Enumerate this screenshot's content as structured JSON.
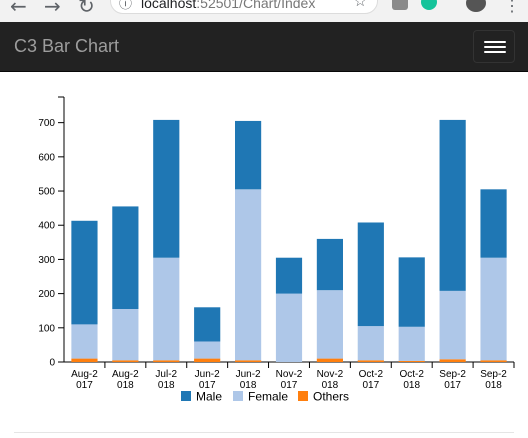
{
  "browser": {
    "url_host": "localhost",
    "url_rest": ":52501/Chart/Index"
  },
  "navbar": {
    "brand": "C3 Bar Chart"
  },
  "chart_data": {
    "type": "bar",
    "stacked": true,
    "categories": [
      [
        "Aug-2",
        "017"
      ],
      [
        "Aug-2",
        "018"
      ],
      [
        "Jul-2",
        "018"
      ],
      [
        "Jun-2",
        "017"
      ],
      [
        "Jun-2",
        "018"
      ],
      [
        "Nov-2",
        "017"
      ],
      [
        "Nov-2",
        "018"
      ],
      [
        "Oct-2",
        "017"
      ],
      [
        "Oct-2",
        "018"
      ],
      [
        "Sep-2",
        "017"
      ],
      [
        "Sep-2",
        "018"
      ]
    ],
    "series": [
      {
        "name": "Male",
        "color": "#1f77b4",
        "values": [
          303,
          300,
          403,
          100,
          200,
          105,
          150,
          303,
          203,
          500,
          200
        ]
      },
      {
        "name": "Female",
        "color": "#aec7e8",
        "values": [
          100,
          150,
          300,
          50,
          500,
          200,
          200,
          100,
          100,
          200,
          300
        ]
      },
      {
        "name": "Others",
        "color": "#ff7f0e",
        "values": [
          10,
          5,
          5,
          10,
          5,
          0,
          10,
          5,
          3,
          8,
          5
        ]
      }
    ],
    "stack_order": [
      "Others",
      "Female",
      "Male"
    ],
    "yticks": [
      0,
      100,
      200,
      300,
      400,
      500,
      600,
      700
    ],
    "ylim": [
      0,
      775
    ],
    "legend_position": "bottom",
    "grid": false
  }
}
